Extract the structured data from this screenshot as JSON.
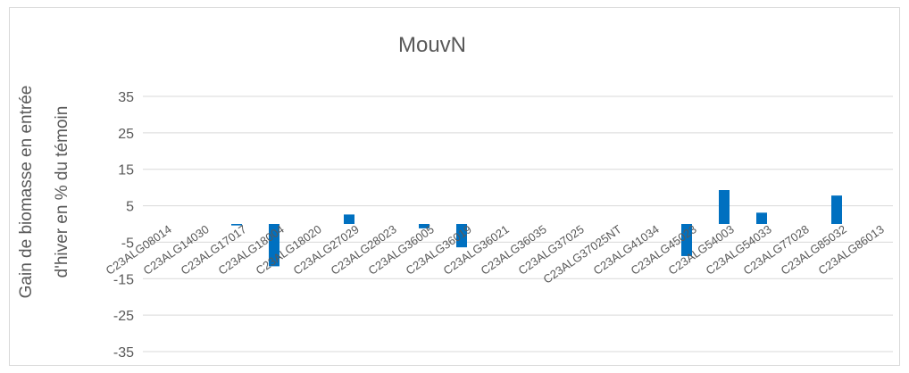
{
  "chart_data": {
    "type": "bar",
    "title": "MouvN",
    "ylabel_lines": [
      "Gain de biomasse en entrée",
      "d'hiver en % du témoin"
    ],
    "xlabel": "",
    "ylim": [
      -40,
      40
    ],
    "yticks": [
      -35,
      -25,
      -15,
      -5,
      5,
      15,
      25,
      35
    ],
    "grid": true,
    "legend": "none",
    "bar_color": "#0070C0",
    "categories": [
      "C23ALG08014",
      "C23ALG14030",
      "C23ALG17017",
      "C23ALG18004",
      "C23ALG18020",
      "C23ALG27029",
      "C23ALG28023",
      "C23ALG36005",
      "C23ALG36019",
      "C23ALG36021",
      "C23ALG36035",
      "C23ALG37025",
      "C23ALG37025NT",
      "C23ALG41034",
      "C23ALG45023",
      "C23ALG54003",
      "C23ALG54033",
      "C23ALG77028",
      "C23ALG85032",
      "C23ALG86013"
    ],
    "values": [
      0,
      0,
      -0.4,
      -11.6,
      0,
      2.6,
      0,
      -1.2,
      -6.4,
      0,
      0,
      0,
      0,
      0,
      -8.8,
      9.3,
      3.1,
      0,
      7.8,
      0
    ]
  }
}
